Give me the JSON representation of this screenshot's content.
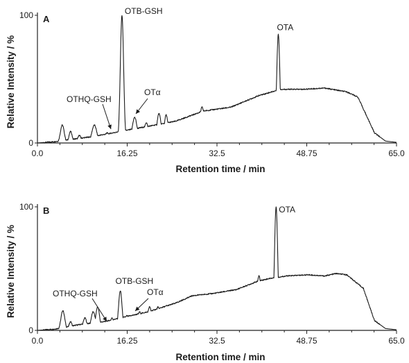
{
  "chart_data": [
    {
      "type": "line",
      "panel_label": "A",
      "xlabel": "Retention time / min",
      "ylabel": "Relative Intensity / %",
      "xlim": [
        0,
        65
      ],
      "ylim": [
        0,
        100
      ],
      "x_ticks": [
        0.0,
        16.25,
        32.5,
        48.75,
        65.0
      ],
      "x_tick_labels": [
        "0.0",
        "16.25",
        "32.5",
        "48.75",
        "65.0"
      ],
      "y_ticks": [
        0,
        100
      ],
      "y_tick_labels": [
        "0",
        "100"
      ],
      "grid": false,
      "series": [
        {
          "baseline": [
            [
              0,
              0
            ],
            [
              3,
              1
            ],
            [
              10,
              5
            ],
            [
              15,
              9
            ],
            [
              20,
              13
            ],
            [
              25,
              17
            ],
            [
              30,
              25
            ],
            [
              35,
              28
            ],
            [
              40,
              37
            ],
            [
              44,
              42
            ],
            [
              48,
              42
            ],
            [
              52,
              43
            ],
            [
              56,
              40
            ],
            [
              58,
              36
            ],
            [
              61,
              8
            ],
            [
              63,
              1.5
            ],
            [
              65,
              0.5
            ]
          ],
          "peaks": [
            {
              "rt": 4.5,
              "height": 14,
              "width": 0.35
            },
            {
              "rt": 6.0,
              "height": 9,
              "width": 0.3
            },
            {
              "rt": 7.6,
              "height": 6,
              "width": 0.3
            },
            {
              "rt": 10.3,
              "height": 14,
              "width": 0.45
            },
            {
              "rt": 12.6,
              "height": 8,
              "width": 0.35
            },
            {
              "rt": 14.3,
              "height": 6,
              "width": 0.3
            },
            {
              "rt": 15.3,
              "height": 100,
              "width": 0.3
            },
            {
              "rt": 17.6,
              "height": 20,
              "width": 0.45
            },
            {
              "rt": 19.7,
              "height": 16,
              "width": 0.4
            },
            {
              "rt": 22.0,
              "height": 23,
              "width": 0.4
            },
            {
              "rt": 23.3,
              "height": 22,
              "width": 0.35
            },
            {
              "rt": 29.8,
              "height": 28,
              "width": 0.5
            },
            {
              "rt": 43.6,
              "height": 85,
              "width": 0.3
            }
          ]
        }
      ],
      "annotations": [
        {
          "text": "OTB-GSH",
          "x": 15.3,
          "y": 100,
          "arrow": false
        },
        {
          "text": "OTA",
          "x": 43.6,
          "y": 85,
          "arrow": false
        },
        {
          "text": "OTHQ-GSH",
          "x": 14.3,
          "y": 10,
          "arrow": true
        },
        {
          "text": "OTα",
          "x": 17.6,
          "y": 20,
          "arrow": true
        }
      ]
    },
    {
      "type": "line",
      "panel_label": "B",
      "xlabel": "Retention time / min",
      "ylabel": "Relative Intensity / %",
      "xlim": [
        0,
        65
      ],
      "ylim": [
        0,
        100
      ],
      "x_ticks": [
        0.0,
        16.25,
        32.5,
        48.75,
        65.0
      ],
      "x_tick_labels": [
        "0.0",
        "16.25",
        "32.5",
        "48.75",
        "65.0"
      ],
      "y_ticks": [
        0,
        100
      ],
      "y_tick_labels": [
        "0",
        "100"
      ],
      "grid": false,
      "series": [
        {
          "baseline": [
            [
              0,
              0
            ],
            [
              3,
              1
            ],
            [
              8,
              5
            ],
            [
              12,
              7
            ],
            [
              16,
              11
            ],
            [
              20,
              15
            ],
            [
              25,
              22
            ],
            [
              28,
              28
            ],
            [
              32,
              30
            ],
            [
              36,
              33
            ],
            [
              40,
              40
            ],
            [
              42,
              42
            ],
            [
              45,
              44
            ],
            [
              49,
              45
            ],
            [
              52,
              44
            ],
            [
              54,
              46
            ],
            [
              56,
              45
            ],
            [
              59,
              34
            ],
            [
              61,
              8
            ],
            [
              63,
              1.5
            ],
            [
              65,
              0.5
            ]
          ],
          "peaks": [
            {
              "rt": 4.6,
              "height": 16,
              "width": 0.35
            },
            {
              "rt": 6.0,
              "height": 7,
              "width": 0.3
            },
            {
              "rt": 8.6,
              "height": 10,
              "width": 0.35
            },
            {
              "rt": 10.1,
              "height": 15,
              "width": 0.4
            },
            {
              "rt": 10.9,
              "height": 19,
              "width": 0.35
            },
            {
              "rt": 13.5,
              "height": 10,
              "width": 0.35
            },
            {
              "rt": 15.0,
              "height": 32,
              "width": 0.32
            },
            {
              "rt": 16.2,
              "height": 12,
              "width": 0.3
            },
            {
              "rt": 18.5,
              "height": 15,
              "width": 0.4
            },
            {
              "rt": 20.3,
              "height": 19,
              "width": 0.4
            },
            {
              "rt": 21.8,
              "height": 19,
              "width": 0.35
            },
            {
              "rt": 23.4,
              "height": 20,
              "width": 0.4
            },
            {
              "rt": 24.7,
              "height": 22,
              "width": 0.35
            },
            {
              "rt": 40.1,
              "height": 44,
              "width": 0.5
            },
            {
              "rt": 43.2,
              "height": 100,
              "width": 0.3
            }
          ]
        }
      ],
      "annotations": [
        {
          "text": "OTA",
          "x": 43.2,
          "y": 100,
          "arrow": false
        },
        {
          "text": "OTB-GSH",
          "x": 15.0,
          "y": 32,
          "arrow": false
        },
        {
          "text": "OTHQ-GSH",
          "x": 13.5,
          "y": 12,
          "arrow": true
        },
        {
          "text": "OTα",
          "x": 18.5,
          "y": 15,
          "arrow": true
        }
      ]
    }
  ]
}
